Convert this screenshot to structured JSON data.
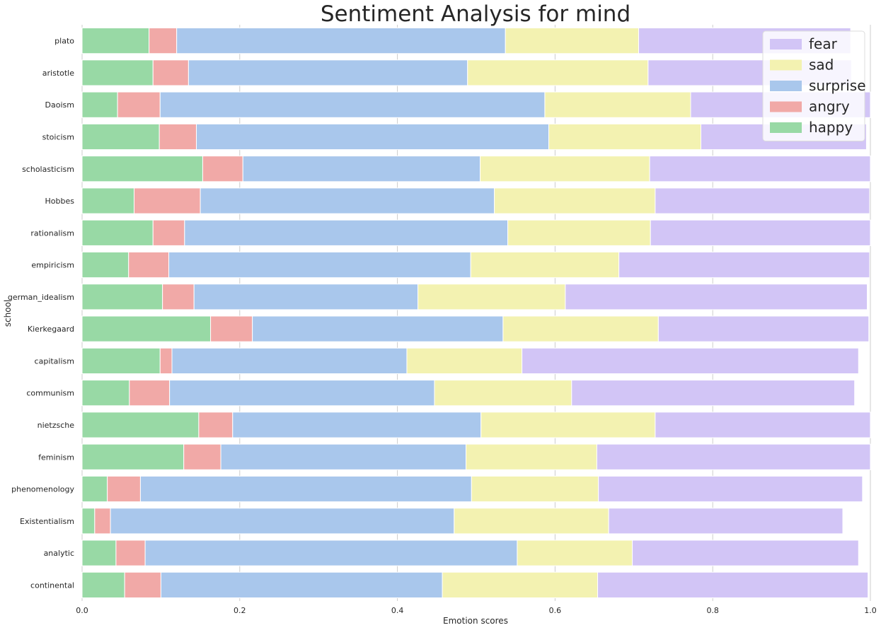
{
  "chart_data": {
    "type": "bar",
    "orientation": "horizontal",
    "stacked": true,
    "title": "Sentiment Analysis for mind",
    "xlabel": "Emotion scores",
    "ylabel": "school",
    "xlim": [
      0,
      1.0
    ],
    "xticks": [
      "0.0",
      "0.2",
      "0.4",
      "0.6",
      "0.8",
      "1.0"
    ],
    "grid": "vertical",
    "legend_position": "top-right",
    "categories": [
      "plato",
      "aristotle",
      "Daoism",
      "stoicism",
      "scholasticism",
      "Hobbes",
      "rationalism",
      "empiricism",
      "german_idealism",
      "Kierkegaard",
      "capitalism",
      "communism",
      "nietzsche",
      "feminism",
      "phenomenology",
      "Existentialism",
      "analytic",
      "continental"
    ],
    "series": [
      {
        "name": "happy",
        "color": "#98d9a5",
        "values": [
          0.085,
          0.09,
          0.045,
          0.098,
          0.153,
          0.066,
          0.09,
          0.059,
          0.102,
          0.163,
          0.099,
          0.06,
          0.148,
          0.129,
          0.032,
          0.016,
          0.043,
          0.054
        ]
      },
      {
        "name": "angry",
        "color": "#f1a9a7",
        "values": [
          0.035,
          0.045,
          0.054,
          0.047,
          0.051,
          0.084,
          0.04,
          0.051,
          0.04,
          0.053,
          0.015,
          0.051,
          0.043,
          0.047,
          0.042,
          0.02,
          0.037,
          0.046
        ]
      },
      {
        "name": "surprise",
        "color": "#a9c7ec",
        "values": [
          0.417,
          0.354,
          0.488,
          0.447,
          0.301,
          0.373,
          0.41,
          0.383,
          0.284,
          0.318,
          0.298,
          0.336,
          0.315,
          0.311,
          0.42,
          0.436,
          0.472,
          0.357
        ]
      },
      {
        "name": "sad",
        "color": "#f3f2b1",
        "values": [
          0.169,
          0.229,
          0.185,
          0.193,
          0.215,
          0.204,
          0.181,
          0.188,
          0.187,
          0.197,
          0.146,
          0.174,
          0.221,
          0.166,
          0.161,
          0.196,
          0.146,
          0.197
        ]
      },
      {
        "name": "fear",
        "color": "#d2c5f6",
        "values": [
          0.269,
          0.258,
          0.228,
          0.21,
          0.28,
          0.272,
          0.279,
          0.318,
          0.383,
          0.267,
          0.427,
          0.359,
          0.273,
          0.347,
          0.335,
          0.297,
          0.287,
          0.343
        ]
      }
    ]
  }
}
